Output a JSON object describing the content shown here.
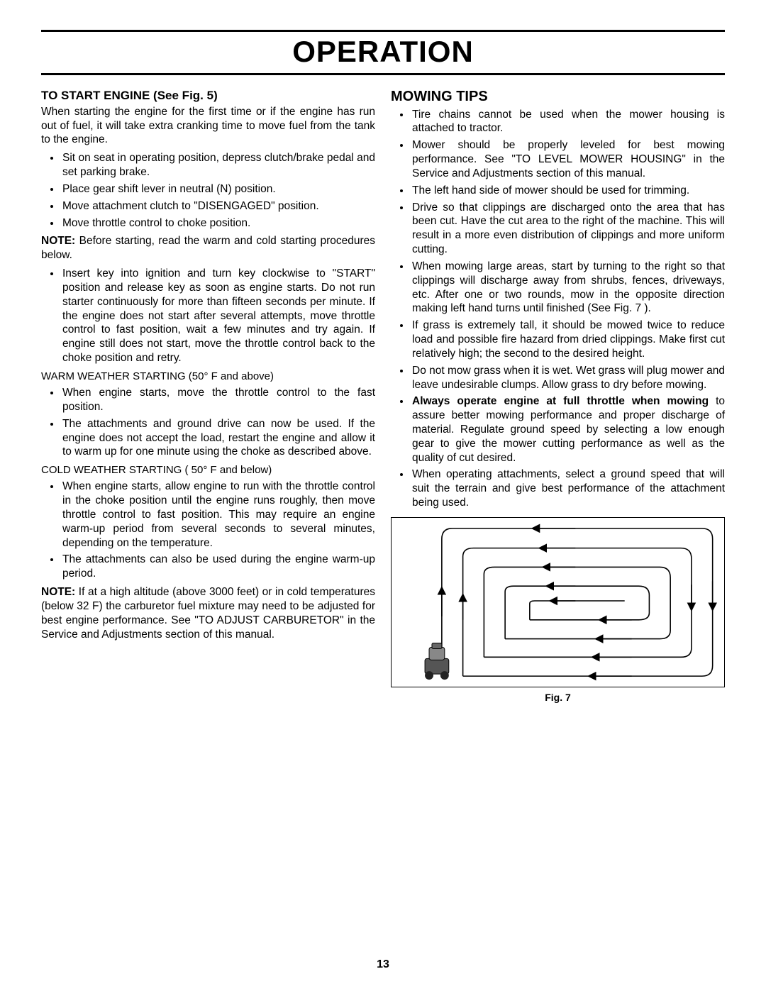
{
  "page": {
    "title": "OPERATION",
    "number": "13"
  },
  "left": {
    "heading": "TO START ENGINE (See Fig. 5)",
    "intro": "When starting the engine for the first time or if the engine has run out of fuel, it will take extra cranking time to move fuel from the tank to the engine.",
    "bullets1": [
      "Sit on seat in operating position, depress clutch/brake pedal and set parking brake.",
      "Place gear shift lever in neutral (N) position.",
      "Move attachment clutch to \"DISENGAGED\" position.",
      "Move throttle control to choke position."
    ],
    "note1_label": "NOTE:",
    "note1_text": " Before starting, read the warm and cold starting procedures below.",
    "bullets2": [
      "Insert key into ignition and turn key clockwise to \"START\" position and release key as soon as engine starts. Do not run starter continuously for more than fifteen seconds per minute. If the engine does not start after several attempts, move throttle control to fast position, wait a few minutes and try again. If engine still does not start, move the throttle control back to the choke position and retry."
    ],
    "warm_heading": "WARM WEATHER STARTING (50° F and above)",
    "warm_bullets": [
      "When engine starts, move the throttle control to the fast position.",
      "The attachments and ground drive can now be used. If the engine does not accept the load, restart the engine and allow it to warm up for one minute using the choke as described above."
    ],
    "cold_heading": "COLD WEATHER STARTING ( 50° F and below)",
    "cold_bullets": [
      "When engine starts, allow engine to run with the throttle control in the choke position until the engine runs roughly, then move throttle control to fast position. This may require an engine warm-up period from several seconds to several minutes, depending on the temperature.",
      "The attachments can also be used during the engine warm-up period."
    ],
    "note2_label": "NOTE:",
    "note2_text": " If at a high altitude (above 3000 feet) or in cold temperatures (below 32 F) the carburetor fuel mixture may need to be adjusted for best engine performance. See \"TO ADJUST CARBURETOR\" in the Service and Adjustments section of this manual."
  },
  "right": {
    "heading": "MOWING TIPS",
    "bullets": [
      {
        "text": "Tire chains cannot be used when the mower housing is attached to tractor."
      },
      {
        "text": "Mower should be properly leveled for best mowing performance. See \"TO LEVEL MOWER HOUSING\" in the Service and Adjustments section of this manual."
      },
      {
        "text": "The left hand side of mower should be used for trimming."
      },
      {
        "text": "Drive so that clippings are discharged onto the area that has been cut.  Have the cut area to the right of the machine.  This will result in a more even distribution of clippings and more uniform cutting."
      },
      {
        "text": "When mowing large areas, start by turning to the right so that clippings will discharge away from shrubs, fences, driveways, etc.  After one or two rounds, mow in the opposite direction making left hand turns until finished (See Fig. 7 )."
      },
      {
        "text": "If grass is extremely tall, it should be mowed twice to reduce load and possible fire hazard from dried clippings.  Make first cut relatively high; the second to the desired height."
      },
      {
        "text": "Do not mow grass when it is wet.  Wet grass will plug mower and leave undesirable clumps.  Allow grass to dry before mowing."
      },
      {
        "bold": "Always operate engine at full throttle when mowing",
        "text": " to assure better mowing performance and proper discharge of material.  Regulate ground speed by selecting a low enough gear to give the mower cutting performance as well as the quality of cut desired."
      },
      {
        "text": "When operating attachments, select a ground speed that will suit the terrain and give best performance of the attachment being used."
      }
    ],
    "fig_caption": "Fig. 7"
  },
  "figure": {
    "stroke": "#000000",
    "stroke_width": 1.6,
    "arrow_size": 7
  }
}
